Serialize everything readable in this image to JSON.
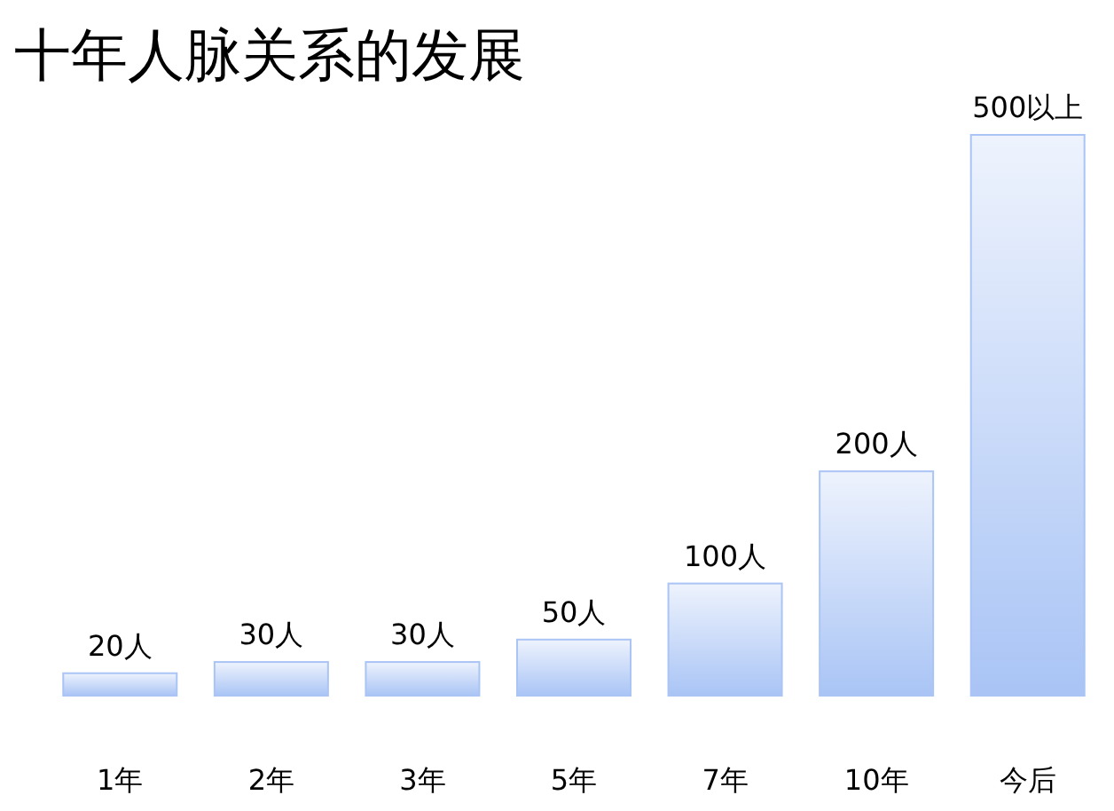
{
  "chart_data": {
    "type": "bar",
    "title": "十年人脉关系的发展",
    "categories": [
      "1年",
      "2年",
      "3年",
      "5年",
      "7年",
      "10年",
      "今后"
    ],
    "values": [
      20,
      30,
      30,
      50,
      100,
      200,
      500
    ],
    "value_labels": [
      "20人",
      "30人",
      "30人",
      "50人",
      "100人",
      "200人",
      "500以上"
    ],
    "color": "#a9c4f5"
  }
}
